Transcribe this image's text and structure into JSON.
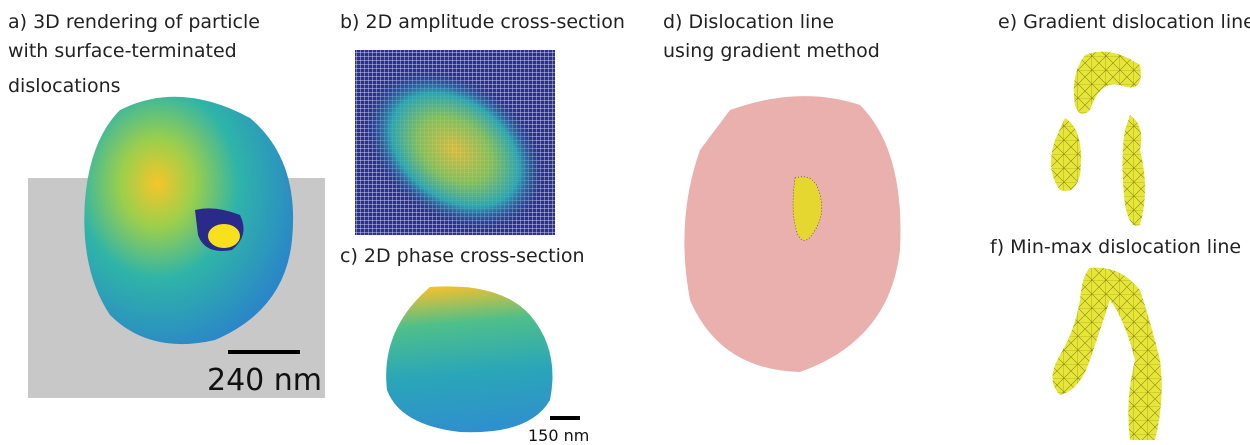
{
  "panels": [
    {
      "title": [
        "a) 3D rendering of particle",
        "with surface-terminated",
        "dislocations"
      ],
      "scale_bar": "240 nm"
    },
    {
      "title": [
        "b) 2D amplitude cross-section"
      ]
    },
    {
      "title": [
        "c) 2D phase cross-section"
      ],
      "scale_bar": "150 nm"
    },
    {
      "title": [
        "d) Dislocation line",
        "using gradient method"
      ]
    },
    {
      "title": [
        "e) Gradient dislocation line"
      ]
    },
    {
      "title": [
        "f) Min-max dislocation line"
      ]
    }
  ]
}
